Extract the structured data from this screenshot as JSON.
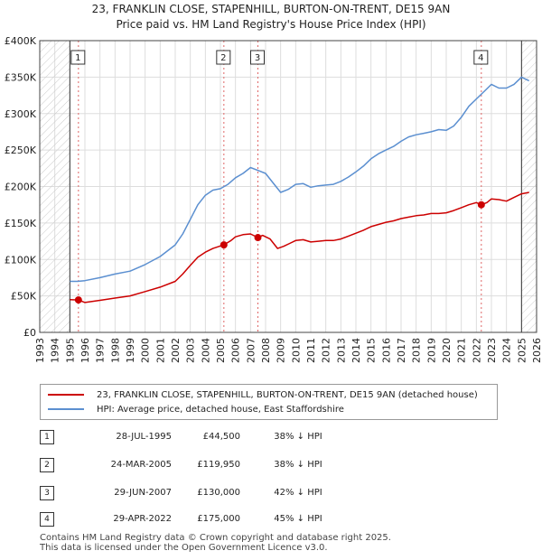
{
  "title_line1": "23, FRANKLIN CLOSE, STAPENHILL, BURTON-ON-TRENT, DE15 9AN",
  "title_line2": "Price paid vs. HM Land Registry's House Price Index (HPI)",
  "chart_data": {
    "type": "line",
    "title": "23, FRANKLIN CLOSE, STAPENHILL, BURTON-ON-TRENT, DE15 9AN",
    "subtitle": "Price paid vs. HM Land Registry's House Price Index (HPI)",
    "xlabel": "",
    "ylabel": "",
    "xlim": [
      1993,
      2026
    ],
    "ylim": [
      0,
      400000
    ],
    "y_ticks": [
      {
        "value": 0,
        "label": "£0"
      },
      {
        "value": 50000,
        "label": "£50K"
      },
      {
        "value": 100000,
        "label": "£100K"
      },
      {
        "value": 150000,
        "label": "£150K"
      },
      {
        "value": 200000,
        "label": "£200K"
      },
      {
        "value": 250000,
        "label": "£250K"
      },
      {
        "value": 300000,
        "label": "£300K"
      },
      {
        "value": 350000,
        "label": "£350K"
      },
      {
        "value": 400000,
        "label": "£400K"
      }
    ],
    "x_ticks": [
      "1993",
      "1994",
      "1995",
      "1996",
      "1997",
      "1998",
      "1999",
      "2000",
      "2001",
      "2002",
      "2003",
      "2004",
      "2005",
      "2006",
      "2007",
      "2008",
      "2009",
      "2010",
      "2011",
      "2012",
      "2013",
      "2014",
      "2015",
      "2016",
      "2017",
      "2018",
      "2019",
      "2020",
      "2021",
      "2022",
      "2023",
      "2024",
      "2025",
      "2026"
    ],
    "hatched_before": 1995.0,
    "hatched_after": 2025.0,
    "series": [
      {
        "name": "23, FRANKLIN CLOSE, STAPENHILL, BURTON-ON-TRENT, DE15 9AN (detached house)",
        "color": "#cc0000",
        "x": [
          1995.0,
          1995.57,
          1996.0,
          1997.0,
          1998.0,
          1999.0,
          2000.0,
          2001.0,
          2002.0,
          2002.5,
          2003.0,
          2003.5,
          2004.0,
          2004.5,
          2005.23,
          2005.7,
          2006.0,
          2006.5,
          2007.0,
          2007.49,
          2007.8,
          2008.3,
          2008.8,
          2009.2,
          2009.6,
          2010.0,
          2010.5,
          2011.0,
          2011.5,
          2012.0,
          2012.5,
          2013.0,
          2013.5,
          2014.0,
          2014.5,
          2015.0,
          2015.5,
          2016.0,
          2016.5,
          2017.0,
          2017.5,
          2018.0,
          2018.5,
          2019.0,
          2019.5,
          2020.0,
          2020.5,
          2021.0,
          2021.5,
          2022.0,
          2022.33,
          2022.7,
          2023.0,
          2023.5,
          2024.0,
          2024.5,
          2025.0,
          2025.5
        ],
        "values": [
          45000,
          44500,
          41000,
          44000,
          47000,
          50000,
          56000,
          62000,
          70000,
          80000,
          92000,
          103000,
          110000,
          115000,
          119950,
          126000,
          131000,
          134000,
          135000,
          130000,
          133000,
          128000,
          115000,
          118000,
          122000,
          126000,
          127000,
          124000,
          125000,
          126000,
          126000,
          128000,
          132000,
          136000,
          140000,
          145000,
          148000,
          151000,
          153000,
          156000,
          158000,
          160000,
          161000,
          163000,
          163000,
          164000,
          167000,
          171000,
          175000,
          178000,
          175000,
          178000,
          183000,
          182000,
          180000,
          185000,
          190000,
          192000
        ]
      },
      {
        "name": "HPI: Average price, detached house, East Staffordshire",
        "color": "#5b8fd0",
        "x": [
          1995.0,
          1995.5,
          1996.0,
          1997.0,
          1998.0,
          1999.0,
          2000.0,
          2001.0,
          2002.0,
          2002.5,
          2003.0,
          2003.5,
          2004.0,
          2004.5,
          2005.0,
          2005.5,
          2006.0,
          2006.5,
          2007.0,
          2007.5,
          2008.0,
          2008.5,
          2009.0,
          2009.5,
          2010.0,
          2010.5,
          2011.0,
          2011.5,
          2012.0,
          2012.5,
          2013.0,
          2013.5,
          2014.0,
          2014.5,
          2015.0,
          2015.5,
          2016.0,
          2016.5,
          2017.0,
          2017.5,
          2018.0,
          2018.5,
          2019.0,
          2019.5,
          2020.0,
          2020.5,
          2021.0,
          2021.5,
          2022.0,
          2022.5,
          2023.0,
          2023.5,
          2024.0,
          2024.5,
          2025.0,
          2025.5
        ],
        "values": [
          70000,
          70000,
          71000,
          75000,
          80000,
          84000,
          93000,
          104000,
          120000,
          135000,
          155000,
          175000,
          188000,
          195000,
          197000,
          203000,
          212000,
          218000,
          226000,
          222000,
          218000,
          205000,
          192000,
          196000,
          203000,
          204000,
          199000,
          201000,
          202000,
          203000,
          207000,
          213000,
          220000,
          228000,
          238000,
          245000,
          250000,
          255000,
          262000,
          268000,
          271000,
          273000,
          275000,
          278000,
          277000,
          283000,
          295000,
          310000,
          320000,
          330000,
          340000,
          335000,
          335000,
          340000,
          350000,
          345000
        ]
      }
    ],
    "sales": [
      {
        "n": "1",
        "date": "28-JUL-1995",
        "x": 1995.57,
        "price": 44500,
        "price_label": "£44,500",
        "hpi": "38% ↓ HPI"
      },
      {
        "n": "2",
        "date": "24-MAR-2005",
        "x": 2005.23,
        "price": 119950,
        "price_label": "£119,950",
        "hpi": "38% ↓ HPI"
      },
      {
        "n": "3",
        "date": "29-JUN-2007",
        "x": 2007.49,
        "price": 130000,
        "price_label": "£130,000",
        "hpi": "42% ↓ HPI"
      },
      {
        "n": "4",
        "date": "29-APR-2022",
        "x": 2022.33,
        "price": 175000,
        "price_label": "£175,000",
        "hpi": "45% ↓ HPI"
      }
    ],
    "grid": true
  },
  "legend": {
    "property": "23, FRANKLIN CLOSE, STAPENHILL, BURTON-ON-TRENT, DE15 9AN (detached house)",
    "hpi": "HPI: Average price, detached house, East Staffordshire"
  },
  "footer": {
    "line1": "Contains HM Land Registry data © Crown copyright and database right 2025.",
    "line2": "This data is licensed under the Open Government Licence v3.0."
  }
}
